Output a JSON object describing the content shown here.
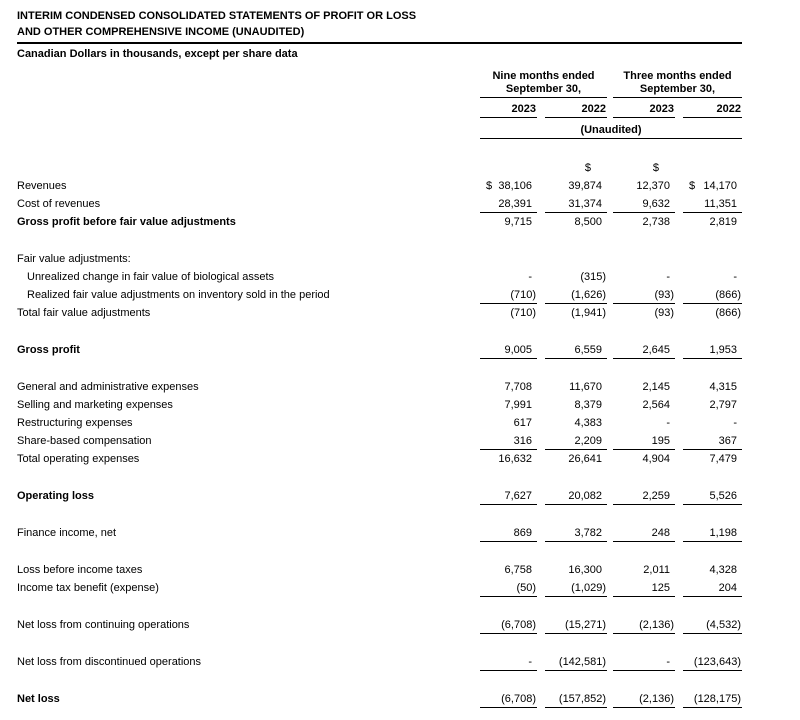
{
  "colors": {
    "background": "#ffffff",
    "text": "#000000",
    "rule": "#000000"
  },
  "header": {
    "title_line1": "INTERIM CONDENSED CONSOLIDATED STATEMENTS OF PROFIT OR LOSS",
    "title_line2": "AND OTHER COMPREHENSIVE INCOME (UNAUDITED)",
    "subtitle": "Canadian Dollars in thousands, except per share data"
  },
  "columns": {
    "group_nine": {
      "line1": "Nine months ended",
      "line2": "September 30,"
    },
    "group_three": {
      "line1": "Three months ended",
      "line2": "September 30,"
    },
    "years": [
      "2023",
      "2022",
      "2023",
      "2022"
    ],
    "unaudited_note": "(Unaudited)",
    "currency_symbol": "$"
  },
  "rows": [
    {
      "spacer": true
    },
    {
      "currency_row": true,
      "label": "",
      "symbols": [
        "",
        "$",
        "$",
        ""
      ]
    },
    {
      "label": "Revenues",
      "values": [
        "38,106",
        "39,874",
        "12,370",
        "14,170"
      ],
      "dollar": [
        1,
        0,
        0,
        1
      ]
    },
    {
      "label": "Cost of revenues",
      "values": [
        "28,391",
        "31,374",
        "9,632",
        "11,351"
      ],
      "rule": true
    },
    {
      "label": "Gross profit before fair value adjustments",
      "bold": true,
      "values": [
        "9,715",
        "8,500",
        "2,738",
        "2,819"
      ]
    },
    {
      "spacer": true
    },
    {
      "label": "Fair value adjustments:",
      "values": [
        "",
        "",
        "",
        ""
      ]
    },
    {
      "label": "Unrealized change in fair value of biological assets",
      "indent": true,
      "values": [
        "-",
        "(315)",
        "-",
        "-"
      ]
    },
    {
      "label": "Realized fair value adjustments on inventory sold in the period",
      "indent": true,
      "values": [
        "(710)",
        "(1,626)",
        "(93)",
        "(866)"
      ],
      "rule": true
    },
    {
      "label": "Total fair value adjustments",
      "values": [
        "(710)",
        "(1,941)",
        "(93)",
        "(866)"
      ]
    },
    {
      "spacer": true
    },
    {
      "label": "Gross profit",
      "bold": true,
      "values": [
        "9,005",
        "6,559",
        "2,645",
        "1,953"
      ],
      "rule": true
    },
    {
      "spacer": true
    },
    {
      "label": "General and administrative expenses",
      "values": [
        "7,708",
        "11,670",
        "2,145",
        "4,315"
      ]
    },
    {
      "label": "Selling and marketing expenses",
      "values": [
        "7,991",
        "8,379",
        "2,564",
        "2,797"
      ]
    },
    {
      "label": "Restructuring expenses",
      "values": [
        "617",
        "4,383",
        "-",
        "-"
      ]
    },
    {
      "label": "Share-based compensation",
      "values": [
        "316",
        "2,209",
        "195",
        "367"
      ],
      "rule": true
    },
    {
      "label": "Total operating expenses",
      "values": [
        "16,632",
        "26,641",
        "4,904",
        "7,479"
      ]
    },
    {
      "spacer": true
    },
    {
      "label": "Operating loss",
      "bold": true,
      "values": [
        "7,627",
        "20,082",
        "2,259",
        "5,526"
      ],
      "rule": true
    },
    {
      "spacer": true
    },
    {
      "label": "Finance income, net",
      "values": [
        "869",
        "3,782",
        "248",
        "1,198"
      ],
      "rule": true
    },
    {
      "spacer": true
    },
    {
      "label": "Loss before income taxes",
      "values": [
        "6,758",
        "16,300",
        "2,011",
        "4,328"
      ]
    },
    {
      "label": "Income tax benefit (expense)",
      "values": [
        "(50)",
        "(1,029)",
        "125",
        "204"
      ],
      "rule": true
    },
    {
      "spacer": true
    },
    {
      "label": "Net loss from continuing operations",
      "values": [
        "(6,708)",
        "(15,271)",
        "(2,136)",
        "(4,532)"
      ],
      "rule": true
    },
    {
      "spacer": true
    },
    {
      "label": "Net loss from discontinued operations",
      "values": [
        "-",
        "(142,581)",
        "-",
        "(123,643)"
      ],
      "rule": true
    },
    {
      "spacer": true
    },
    {
      "label": "Net loss",
      "bold": true,
      "values": [
        "(6,708)",
        "(157,852)",
        "(2,136)",
        "(128,175)"
      ],
      "rule": true
    }
  ]
}
